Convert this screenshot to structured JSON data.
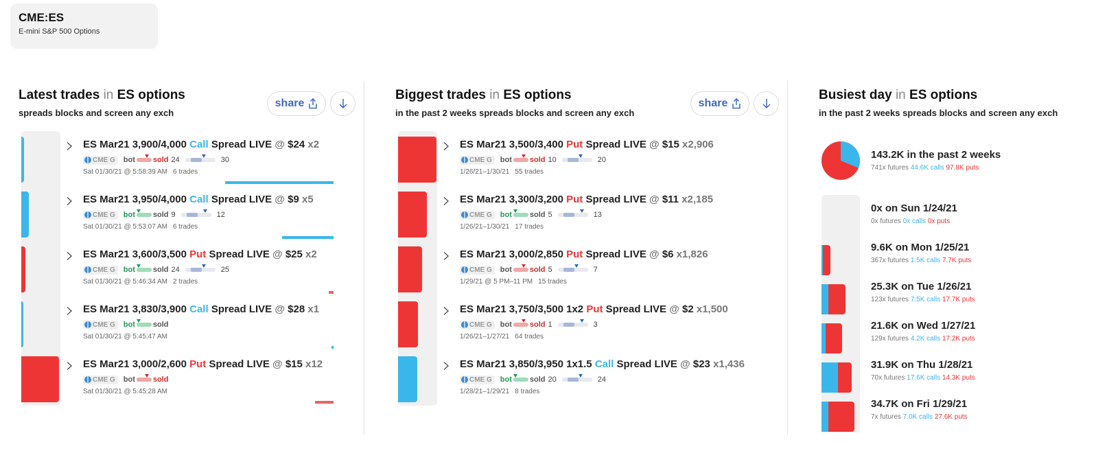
{
  "ticker": {
    "symbol": "CME:ES",
    "name": "E-mini S&P 500 Options"
  },
  "colors": {
    "call": "#3ab7ea",
    "put": "#ee3535",
    "accent": "#3f6bc4",
    "bot": "#1d9a56",
    "sold": "#d42a2a"
  },
  "icons": {
    "share": "share-icon",
    "download": "download-icon",
    "expand": "chevron-right-icon",
    "exchange": "globe-icon"
  },
  "share_label": "share",
  "in_word": "in",
  "bot_label": "bot",
  "sold_label": "sold",
  "latest": {
    "title_main": "Latest trades",
    "title_target": "ES options",
    "subtitle": "spreads blocks and screen any exch",
    "trades": [
      {
        "prefix": "ES Mar21 3,900/4,000",
        "type": "Call",
        "suffix": "Spread LIVE",
        "at": "@",
        "price": "$24",
        "qty": "x2",
        "exchange": "CME G",
        "side": "sold",
        "low": "24",
        "high": "30",
        "time": "Sat 01/30/21 @ 5:58:39 AM",
        "count": "6 trades",
        "size": 0.08
      },
      {
        "prefix": "ES Mar21 3,950/4,000",
        "type": "Call",
        "suffix": "Spread LIVE",
        "at": "@",
        "price": "$9",
        "qty": "x5",
        "exchange": "CME G",
        "side": "bot",
        "low": "9",
        "high": "12",
        "time": "Sat 01/30/21 @ 5:53:07 AM",
        "count": "6 trades",
        "size": 0.2
      },
      {
        "prefix": "ES Mar21 3,600/3,500",
        "type": "Put",
        "suffix": "Spread LIVE",
        "at": "@",
        "price": "$25",
        "qty": "x2",
        "exchange": "CME G",
        "side": "bot",
        "low": "24",
        "high": "25",
        "time": "Sat 01/30/21 @ 5:46:34 AM",
        "count": "2 trades",
        "size": 0.1
      },
      {
        "prefix": "ES Mar21 3,830/3,900",
        "type": "Call",
        "suffix": "Spread LIVE",
        "at": "@",
        "price": "$28",
        "qty": "x1",
        "exchange": "CME G",
        "side": "bot",
        "low": "",
        "high": "",
        "time": "Sat 01/30/21 @ 5:45:47 AM",
        "count": "",
        "size": 0.05
      },
      {
        "prefix": "ES Mar21 3,000/2,600",
        "type": "Put",
        "suffix": "Spread LIVE",
        "at": "@",
        "price": "$15",
        "qty": "x12",
        "exchange": "CME G",
        "side": "sold",
        "low": "",
        "high": "",
        "time": "Sat 01/30/21 @ 5:45:28 AM",
        "count": "",
        "size": 1.0
      }
    ]
  },
  "biggest": {
    "title_main": "Biggest trades",
    "title_target": "ES options",
    "subtitle": "in the past 2 weeks spreads blocks and screen any exch",
    "trades": [
      {
        "prefix": "ES Mar21 3,500/3,400",
        "type": "Put",
        "suffix": "Spread LIVE",
        "at": "@",
        "price": "$15",
        "qty": "x2,906",
        "exchange": "CME G",
        "side": "sold",
        "low": "10",
        "high": "20",
        "time": "1/26/21–1/30/21",
        "count": "55 trades",
        "size": 1.0
      },
      {
        "prefix": "ES Mar21 3,300/3,200",
        "type": "Put",
        "suffix": "Spread LIVE",
        "at": "@",
        "price": "$11",
        "qty": "x2,185",
        "exchange": "CME G",
        "side": "bot",
        "low": "5",
        "high": "13",
        "time": "1/26/21–1/30/21",
        "count": "17 trades",
        "size": 0.75
      },
      {
        "prefix": "ES Mar21 3,000/2,850",
        "type": "Put",
        "suffix": "Spread LIVE",
        "at": "@",
        "price": "$6",
        "qty": "x1,826",
        "exchange": "CME G",
        "side": "sold",
        "low": "5",
        "high": "7",
        "time": "1/29/21 @ 5 PM–11 PM",
        "count": "15 trades",
        "size": 0.63
      },
      {
        "prefix": "ES Mar21 3,750/3,500 1x2",
        "type": "Put",
        "suffix": "Spread LIVE",
        "at": "@",
        "price": "$2",
        "qty": "x1,500",
        "exchange": "CME G",
        "side": "sold",
        "low": "1",
        "high": "3",
        "time": "1/26/21–1/27/21",
        "count": "64 trades",
        "size": 0.52
      },
      {
        "prefix": "ES Mar21 3,850/3,950 1x1.5",
        "type": "Call",
        "suffix": "Spread LIVE",
        "at": "@",
        "price": "$23",
        "qty": "x1,436",
        "exchange": "CME G",
        "side": "bot",
        "low": "20",
        "high": "24",
        "time": "1/28/21–1/29/21",
        "count": "8 trades",
        "size": 0.5
      }
    ]
  },
  "busiest": {
    "title_main": "Busiest day",
    "title_target": "ES options",
    "subtitle": "in the past 2 weeks spreads blocks and screen any exch",
    "total": "143.2K in the past 2 weeks",
    "total_futures": "741x futures",
    "total_calls": "44.6K calls",
    "total_puts": "97.8K puts",
    "call_share": 0.313,
    "days": [
      {
        "label": "0x on Sun 1/24/21",
        "futures": "0x futures",
        "calls": "0x calls",
        "puts": "0x puts",
        "calls_k": 0,
        "puts_k": 0
      },
      {
        "label": "9.6K on Mon 1/25/21",
        "futures": "367x futures",
        "calls": "1.5K calls",
        "puts": "7.7K puts",
        "calls_k": 1.5,
        "puts_k": 7.7
      },
      {
        "label": "25.3K on Tue 1/26/21",
        "futures": "123x futures",
        "calls": "7.5K calls",
        "puts": "17.7K puts",
        "calls_k": 7.5,
        "puts_k": 17.7
      },
      {
        "label": "21.6K on Wed 1/27/21",
        "futures": "129x futures",
        "calls": "4.2K calls",
        "puts": "17.2K puts",
        "calls_k": 4.2,
        "puts_k": 17.2
      },
      {
        "label": "31.9K on Thu 1/28/21",
        "futures": "70x futures",
        "calls": "17.6K calls",
        "puts": "14.3K puts",
        "calls_k": 17.6,
        "puts_k": 14.3
      },
      {
        "label": "34.7K on Fri 1/29/21",
        "futures": "7x futures",
        "calls": "7.0K calls",
        "puts": "27.6K puts",
        "calls_k": 7.0,
        "puts_k": 27.6
      }
    ]
  }
}
